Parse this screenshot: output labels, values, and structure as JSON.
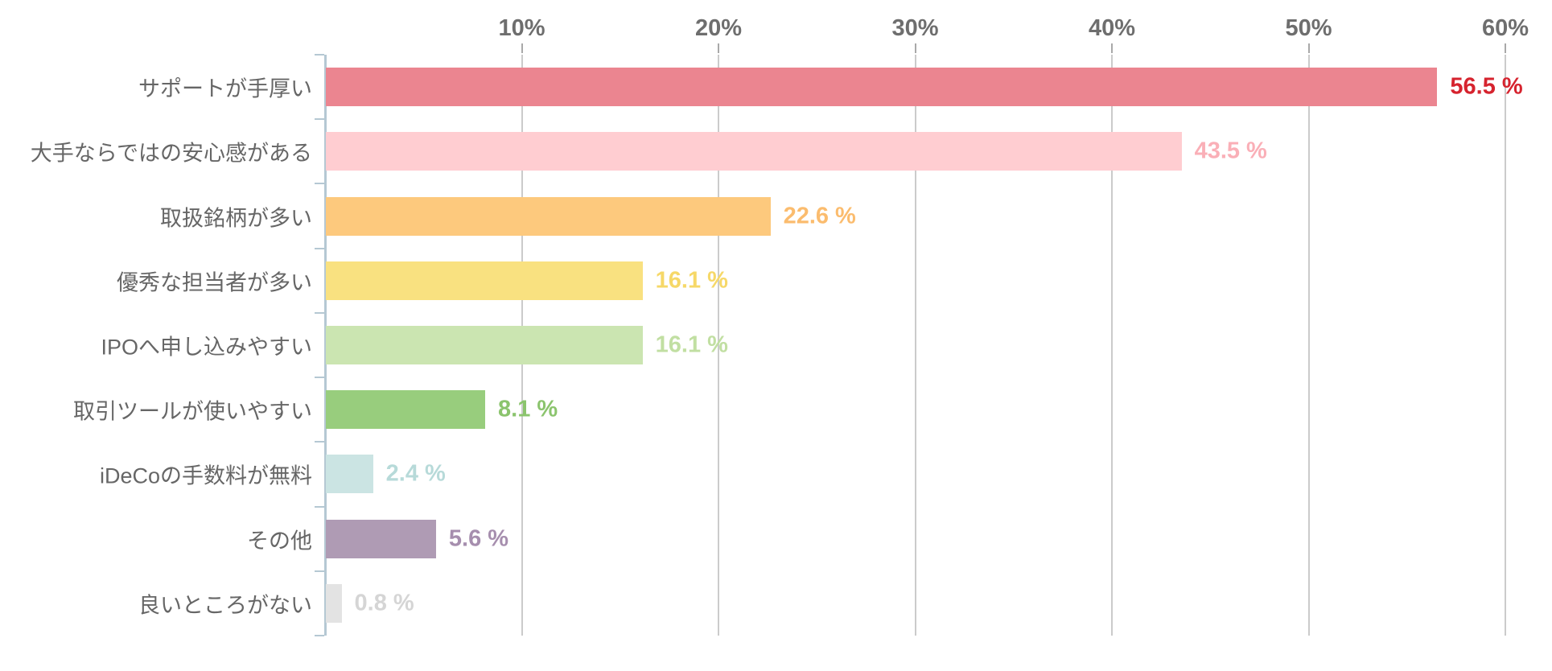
{
  "chart_data": {
    "type": "bar",
    "orientation": "horizontal",
    "title": "",
    "xlabel": "",
    "ylabel": "",
    "categories": [
      "サポートが手厚い",
      "大手ならではの安心感がある",
      "取扱銘柄が多い",
      "優秀な担当者が多い",
      "IPOへ申し込みやすい",
      "取引ツールが使いやすい",
      "iDeCoの手数料が無料",
      "その他",
      "良いところがない"
    ],
    "values": [
      56.5,
      43.5,
      22.6,
      16.1,
      16.1,
      8.1,
      2.4,
      5.6,
      0.8
    ],
    "value_labels": [
      "56.5 %",
      "43.5 %",
      "22.6 %",
      "16.1 %",
      "16.1 %",
      "8.1 %",
      "2.4 %",
      "5.6 %",
      "0.8 %"
    ],
    "bar_colors": [
      "#eb8590",
      "#ffcdd1",
      "#fdc97d",
      "#f9e180",
      "#cbe5b1",
      "#98cd7d",
      "#cbe4e3",
      "#af9bb4",
      "#e3e3e3"
    ],
    "value_label_colors": [
      "#d6232e",
      "#faafb7",
      "#fbbc6e",
      "#f6d868",
      "#c1dfa2",
      "#8bc46d",
      "#b7dad9",
      "#a68eae",
      "#d5d5d5"
    ],
    "x_ticks": [
      "10%",
      "20%",
      "30%",
      "40%",
      "50%",
      "60%"
    ],
    "x_tick_values": [
      10,
      20,
      30,
      40,
      50,
      60
    ],
    "xlim": [
      0,
      62.3
    ],
    "grid": true,
    "legend": "none",
    "colors": {
      "background": "#ffffff",
      "gridline": "#cbcbcb",
      "axis_line": "#b5c8d3",
      "x_tick_label": "#6e6e6e",
      "x_tick_mark": "#a9a9a9",
      "category_label": "#666666"
    }
  }
}
